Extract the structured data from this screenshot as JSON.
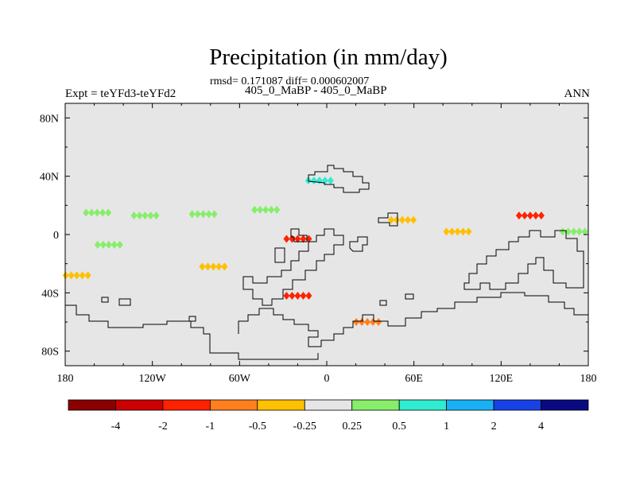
{
  "title": "Precipitation (in mm/day)",
  "stats_line": "rmsd= 0.171087 diff= 0.000602007",
  "subtitle": "405_0_MaBP - 405_0_MaBP",
  "experiment_label": "Expt = teYFd3-teYFd2",
  "season": "ANN",
  "chart_data": {
    "type": "heatmap",
    "title": "Precipitation (in mm/day)",
    "subtitle": "405_0_MaBP - 405_0_MaBP",
    "projection": "cylindrical-equidistant",
    "xlim": [
      -180,
      180
    ],
    "ylim": [
      -90,
      90
    ],
    "x_ticks": [
      -180,
      -120,
      -60,
      0,
      60,
      120,
      180
    ],
    "x_tick_labels": [
      "180",
      "120W",
      "60W",
      "0",
      "60E",
      "120E",
      "180"
    ],
    "y_ticks": [
      80,
      40,
      0,
      -40,
      -80
    ],
    "y_tick_labels": [
      "80N",
      "40N",
      "0",
      "40S",
      "80S"
    ],
    "colorbar": {
      "levels": [
        "-4",
        "-2",
        "-1",
        "-0.5",
        "-0.25",
        "0.25",
        "0.5",
        "1",
        "2",
        "4"
      ],
      "colors": [
        "#8b0000",
        "#cc0000",
        "#ff2200",
        "#ff7f1e",
        "#ffc000",
        "#e6e6e6",
        "#86ee6a",
        "#30ecd0",
        "#1ab0f5",
        "#1842e6",
        "#0a0a80"
      ]
    },
    "background_color": "#e6e6e6",
    "anomaly_regions": [
      {
        "name": "north-pacific-green-1",
        "lon": -158,
        "lat": 15,
        "level": "0.25"
      },
      {
        "name": "north-pacific-green-2",
        "lon": -125,
        "lat": 13,
        "level": "0.25"
      },
      {
        "name": "north-pacific-green-3",
        "lon": -85,
        "lat": 14,
        "level": "0.25"
      },
      {
        "name": "north-pacific-green-4",
        "lon": -42,
        "lat": 17,
        "level": "0.25"
      },
      {
        "name": "tropical-pacific-green",
        "lon": -150,
        "lat": -7,
        "level": "0.25"
      },
      {
        "name": "east-pacific-orange",
        "lon": -172,
        "lat": -28,
        "level": "-0.25"
      },
      {
        "name": "south-pacific-orange",
        "lon": -78,
        "lat": -22,
        "level": "-0.25"
      },
      {
        "name": "north-atlantic-cyan",
        "lon": -5,
        "lat": 37,
        "level": "0.5"
      },
      {
        "name": "west-africa-dipole",
        "lon": -20,
        "lat": -3,
        "level": "-1"
      },
      {
        "name": "south-atlantic-dipole",
        "lon": -20,
        "lat": -42,
        "level": "-1"
      },
      {
        "name": "indian-ocean-orange",
        "lon": 52,
        "lat": 10,
        "level": "-0.25"
      },
      {
        "name": "north-indian-band",
        "lon": 90,
        "lat": 2,
        "level": "-0.25"
      },
      {
        "name": "west-pacific-max",
        "lon": 140,
        "lat": 13,
        "level": "-1"
      },
      {
        "name": "south-pacific-green",
        "lon": 170,
        "lat": 2,
        "level": "0.25"
      },
      {
        "name": "southern-ocean-orange",
        "lon": 28,
        "lat": -60,
        "level": "-0.5"
      }
    ]
  }
}
